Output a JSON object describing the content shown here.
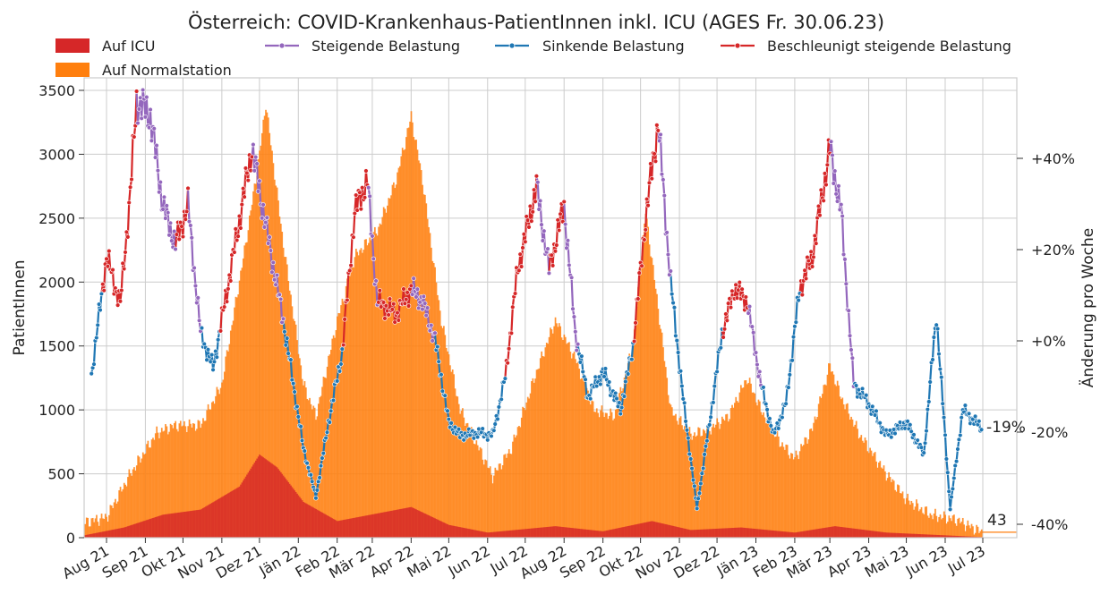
{
  "chart_data": {
    "type": "bar+line",
    "title": "Österreich: COVID-Krankenhaus-PatientInnen inkl. ICU (AGES Fr. 30.06.23)",
    "ylabel": "PatientInnen",
    "ylabel_right": "Änderung pro Woche",
    "ylim": [
      0,
      3500
    ],
    "yticks": [
      "0",
      "500",
      "1000",
      "1500",
      "2000",
      "2500",
      "3000",
      "3500"
    ],
    "right_ticks": [
      "+40%",
      "+20%",
      "+0%",
      "-20%",
      "-40%"
    ],
    "xticks": [
      "Aug 21",
      "Sep 21",
      "Okt 21",
      "Nov 21",
      "Dez 21",
      "Jän 22",
      "Feb 22",
      "Mär 22",
      "Apr 22",
      "Mai 22",
      "Jun 22",
      "Jul 22",
      "Aug 22",
      "Sep 22",
      "Okt 22",
      "Nov 22",
      "Dez 22",
      "Jän 23",
      "Feb 23",
      "Mär 23",
      "Apr 23",
      "Mai 23",
      "Jun 23",
      "Jul 23"
    ],
    "legend": [
      "Auf ICU",
      "Auf Normalstation",
      "Steigende Belastung",
      "Sinkende Belastung",
      "Beschleunigt steigende Belastung"
    ],
    "colors": {
      "icu": "#d62728",
      "normal": "#ff7f0e",
      "steigend": "#9467bd",
      "sinkend": "#1f77b4",
      "beschleunigt": "#d62728",
      "grid": "#cccccc"
    },
    "total_keypoints": [
      [
        "2021-07-15",
        120
      ],
      [
        "2021-08-01",
        160
      ],
      [
        "2021-08-20",
        500
      ],
      [
        "2021-09-10",
        820
      ],
      [
        "2021-09-25",
        880
      ],
      [
        "2021-10-15",
        880
      ],
      [
        "2021-11-01",
        1200
      ],
      [
        "2021-11-20",
        2300
      ],
      [
        "2021-12-01",
        3000
      ],
      [
        "2021-12-06",
        3400
      ],
      [
        "2021-12-20",
        2300
      ],
      [
        "2022-01-05",
        1200
      ],
      [
        "2022-01-15",
        950
      ],
      [
        "2022-02-01",
        1700
      ],
      [
        "2022-02-15",
        2200
      ],
      [
        "2022-03-05",
        2400
      ],
      [
        "2022-03-20",
        2800
      ],
      [
        "2022-04-01",
        3300
      ],
      [
        "2022-04-10",
        2800
      ],
      [
        "2022-04-25",
        1700
      ],
      [
        "2022-05-10",
        1000
      ],
      [
        "2022-05-25",
        700
      ],
      [
        "2022-06-05",
        480
      ],
      [
        "2022-06-20",
        700
      ],
      [
        "2022-07-10",
        1300
      ],
      [
        "2022-07-25",
        1700
      ],
      [
        "2022-08-10",
        1400
      ],
      [
        "2022-08-25",
        1000
      ],
      [
        "2022-09-10",
        950
      ],
      [
        "2022-09-25",
        1500
      ],
      [
        "2022-10-05",
        2550
      ],
      [
        "2022-10-15",
        1800
      ],
      [
        "2022-10-25",
        1000
      ],
      [
        "2022-11-10",
        800
      ],
      [
        "2022-11-25",
        850
      ],
      [
        "2022-12-10",
        950
      ],
      [
        "2022-12-25",
        1250
      ],
      [
        "2023-01-05",
        1000
      ],
      [
        "2023-01-20",
        750
      ],
      [
        "2023-02-01",
        620
      ],
      [
        "2023-02-15",
        850
      ],
      [
        "2023-03-01",
        1350
      ],
      [
        "2023-03-10",
        1100
      ],
      [
        "2023-03-25",
        800
      ],
      [
        "2023-04-15",
        500
      ],
      [
        "2023-05-01",
        300
      ],
      [
        "2023-05-20",
        180
      ],
      [
        "2023-06-10",
        140
      ],
      [
        "2023-06-30",
        43
      ]
    ],
    "icu_keypoints": [
      [
        "2021-07-15",
        20
      ],
      [
        "2021-08-15",
        80
      ],
      [
        "2021-09-15",
        180
      ],
      [
        "2021-10-15",
        220
      ],
      [
        "2021-11-15",
        400
      ],
      [
        "2021-12-01",
        650
      ],
      [
        "2021-12-15",
        550
      ],
      [
        "2022-01-05",
        280
      ],
      [
        "2022-02-01",
        130
      ],
      [
        "2022-04-01",
        240
      ],
      [
        "2022-05-01",
        100
      ],
      [
        "2022-06-01",
        40
      ],
      [
        "2022-07-25",
        90
      ],
      [
        "2022-09-01",
        50
      ],
      [
        "2022-10-10",
        130
      ],
      [
        "2022-11-10",
        60
      ],
      [
        "2022-12-20",
        80
      ],
      [
        "2023-02-01",
        40
      ],
      [
        "2023-03-05",
        90
      ],
      [
        "2023-04-15",
        40
      ],
      [
        "2023-06-30",
        5
      ]
    ],
    "line_keypoints": [
      [
        "2021-07-20",
        1270
      ],
      [
        "2021-08-01",
        2200
      ],
      [
        "2021-08-12",
        1830
      ],
      [
        "2021-08-20",
        2700
      ],
      [
        "2021-08-25",
        3420
      ],
      [
        "2021-09-05",
        3300
      ],
      [
        "2021-09-15",
        2600
      ],
      [
        "2021-09-25",
        2300
      ],
      [
        "2021-10-05",
        2600
      ],
      [
        "2021-10-15",
        1600
      ],
      [
        "2021-10-25",
        1330
      ],
      [
        "2021-11-10",
        2200
      ],
      [
        "2021-11-25",
        3050
      ],
      [
        "2021-12-05",
        2500
      ],
      [
        "2021-12-20",
        1700
      ],
      [
        "2022-01-05",
        700
      ],
      [
        "2022-01-15",
        320
      ],
      [
        "2022-01-25",
        900
      ],
      [
        "2022-02-05",
        1450
      ],
      [
        "2022-02-15",
        2550
      ],
      [
        "2022-02-25",
        2800
      ],
      [
        "2022-03-05",
        1850
      ],
      [
        "2022-03-20",
        1750
      ],
      [
        "2022-04-01",
        1950
      ],
      [
        "2022-04-10",
        1850
      ],
      [
        "2022-04-20",
        1550
      ],
      [
        "2022-05-01",
        900
      ],
      [
        "2022-05-10",
        800
      ],
      [
        "2022-05-25",
        820
      ],
      [
        "2022-06-05",
        800
      ],
      [
        "2022-06-15",
        1250
      ],
      [
        "2022-06-25",
        2100
      ],
      [
        "2022-07-10",
        2750
      ],
      [
        "2022-07-20",
        2100
      ],
      [
        "2022-08-01",
        2600
      ],
      [
        "2022-08-10",
        1600
      ],
      [
        "2022-08-20",
        1100
      ],
      [
        "2022-09-01",
        1300
      ],
      [
        "2022-09-15",
        1000
      ],
      [
        "2022-09-25",
        1500
      ],
      [
        "2022-10-05",
        2500
      ],
      [
        "2022-10-15",
        3250
      ],
      [
        "2022-10-25",
        2000
      ],
      [
        "2022-11-05",
        1000
      ],
      [
        "2022-11-15",
        230
      ],
      [
        "2022-11-25",
        900
      ],
      [
        "2022-12-05",
        1600
      ],
      [
        "2022-12-15",
        1950
      ],
      [
        "2022-12-25",
        1850
      ],
      [
        "2023-01-05",
        1200
      ],
      [
        "2023-01-15",
        800
      ],
      [
        "2023-01-25",
        1050
      ],
      [
        "2023-02-05",
        1950
      ],
      [
        "2023-02-15",
        2200
      ],
      [
        "2023-03-01",
        3050
      ],
      [
        "2023-03-10",
        2550
      ],
      [
        "2023-03-20",
        1200
      ],
      [
        "2023-04-01",
        1050
      ],
      [
        "2023-04-15",
        800
      ],
      [
        "2023-05-01",
        900
      ],
      [
        "2023-05-15",
        650
      ],
      [
        "2023-05-25",
        1750
      ],
      [
        "2023-06-05",
        230
      ],
      [
        "2023-06-15",
        1000
      ],
      [
        "2023-06-30",
        860
      ]
    ],
    "line_segments": [
      [
        "2021-07-20",
        "2021-07-28",
        "sinkend"
      ],
      [
        "2021-07-28",
        "2021-08-25",
        "beschleunigt"
      ],
      [
        "2021-08-25",
        "2021-09-25",
        "steigend"
      ],
      [
        "2021-09-25",
        "2021-10-05",
        "beschleunigt"
      ],
      [
        "2021-10-05",
        "2021-10-15",
        "steigend"
      ],
      [
        "2021-10-15",
        "2021-10-30",
        "sinkend"
      ],
      [
        "2021-10-30",
        "2021-11-25",
        "beschleunigt"
      ],
      [
        "2021-11-25",
        "2021-12-20",
        "steigend"
      ],
      [
        "2021-12-20",
        "2022-02-05",
        "sinkend"
      ],
      [
        "2022-02-05",
        "2022-02-25",
        "beschleunigt"
      ],
      [
        "2022-02-25",
        "2022-03-05",
        "steigend"
      ],
      [
        "2022-03-05",
        "2022-04-01",
        "beschleunigt"
      ],
      [
        "2022-04-01",
        "2022-04-20",
        "steigend"
      ],
      [
        "2022-04-20",
        "2022-06-15",
        "sinkend"
      ],
      [
        "2022-06-15",
        "2022-07-10",
        "beschleunigt"
      ],
      [
        "2022-07-10",
        "2022-07-20",
        "steigend"
      ],
      [
        "2022-07-20",
        "2022-08-01",
        "beschleunigt"
      ],
      [
        "2022-08-01",
        "2022-08-12",
        "steigend"
      ],
      [
        "2022-08-12",
        "2022-09-25",
        "sinkend"
      ],
      [
        "2022-09-25",
        "2022-10-15",
        "beschleunigt"
      ],
      [
        "2022-10-15",
        "2022-10-25",
        "steigend"
      ],
      [
        "2022-10-25",
        "2022-12-05",
        "sinkend"
      ],
      [
        "2022-12-05",
        "2022-12-25",
        "beschleunigt"
      ],
      [
        "2022-12-25",
        "2023-01-05",
        "steigend"
      ],
      [
        "2023-01-05",
        "2023-02-05",
        "sinkend"
      ],
      [
        "2023-02-05",
        "2023-03-01",
        "beschleunigt"
      ],
      [
        "2023-03-01",
        "2023-03-20",
        "steigend"
      ],
      [
        "2023-03-20",
        "2023-06-30",
        "sinkend"
      ]
    ],
    "annotations": {
      "last_change": "-19%",
      "last_value": "43"
    }
  }
}
